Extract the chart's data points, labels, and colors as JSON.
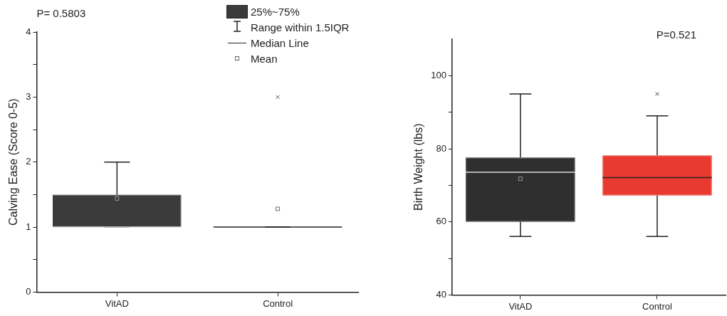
{
  "chart_data": [
    {
      "type": "box",
      "title": "P= 0.5803",
      "ylabel": "Calving Ease (Score 0-5)",
      "categories": [
        "VitAD",
        "Control"
      ],
      "boxes": [
        {
          "low": 1,
          "q1": 1,
          "median": 1,
          "q3": 1.5,
          "high": 2,
          "mean": 1.44
        },
        {
          "low": 1,
          "q1": 1,
          "median": 1,
          "q3": 1,
          "high": 1,
          "mean": 1.28,
          "outliers": [
            3
          ]
        }
      ],
      "colors": [
        "#3b3b3b",
        "#222222"
      ],
      "ylim": [
        0,
        4
      ],
      "yticks": [
        0,
        {
          "value": 0.5,
          "label": null
        },
        1,
        {
          "value": 1.5,
          "label": null
        },
        2,
        {
          "value": 2.5,
          "label": null
        },
        3,
        {
          "value": 3.5,
          "label": null
        },
        4
      ],
      "annotations": [
        "25%~75%",
        "Range within 1.5IQR",
        "Median Line",
        "Mean"
      ]
    },
    {
      "type": "box",
      "title": "P=0.521",
      "ylabel": "Birth Weight (lbs)",
      "categories": [
        "VitAD",
        "Control"
      ],
      "boxes": [
        {
          "low": 56,
          "q1": 60,
          "median": 73.6,
          "q3": 77.6,
          "high": 95,
          "mean": 71.8
        },
        {
          "low": 56,
          "q1": 67.2,
          "median": 72.1,
          "q3": 78.2,
          "high": 89,
          "outliers": [
            95
          ]
        }
      ],
      "colors": [
        "#2f2f2f",
        "#e83a30"
      ],
      "ylim": [
        40,
        110
      ],
      "yticks": [
        40,
        {
          "value": 50,
          "label": null
        },
        60,
        {
          "value": 70,
          "label": null
        },
        80,
        {
          "value": 90,
          "label": null
        },
        100
      ]
    }
  ]
}
